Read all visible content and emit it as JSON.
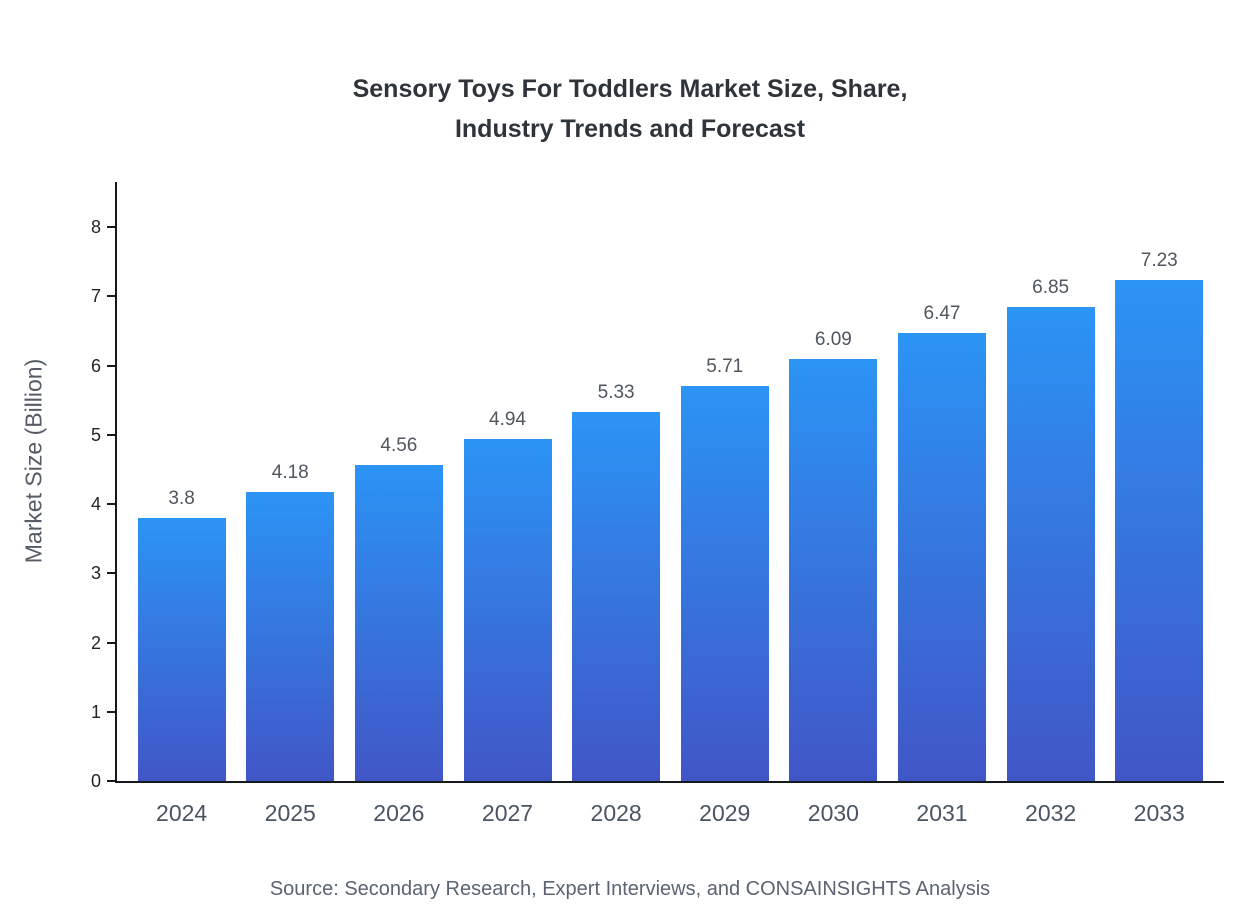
{
  "title": {
    "lines": [
      "Sensory Toys For Toddlers Market Size, Share,",
      "Industry Trends and Forecast"
    ]
  },
  "source": "Source: Secondary Research, Expert Interviews, and CONSAINSIGHTS Analysis",
  "chart_data": {
    "type": "bar",
    "title": "Sensory Toys For Toddlers Market Size, Share, Industry Trends and Forecast",
    "categories": [
      "2024",
      "2025",
      "2026",
      "2027",
      "2028",
      "2029",
      "2030",
      "2031",
      "2032",
      "2033"
    ],
    "values": [
      3.8,
      4.18,
      4.56,
      4.94,
      5.33,
      5.71,
      6.09,
      6.47,
      6.85,
      7.23
    ],
    "labels": [
      "3.8",
      "4.18",
      "4.56",
      "4.94",
      "5.33",
      "5.71",
      "6.09",
      "6.47",
      "6.85",
      "7.23"
    ],
    "xlabel": "",
    "ylabel": "Market Size (Billion)",
    "ylim": [
      0,
      8
    ],
    "yticks": [
      0,
      1,
      2,
      3,
      4,
      5,
      6,
      7,
      8
    ],
    "grid": false,
    "legend": "none",
    "bar_color_top": "#2b94f5",
    "bar_color_bottom": "#4156c6",
    "axis_color": "#15181c"
  }
}
